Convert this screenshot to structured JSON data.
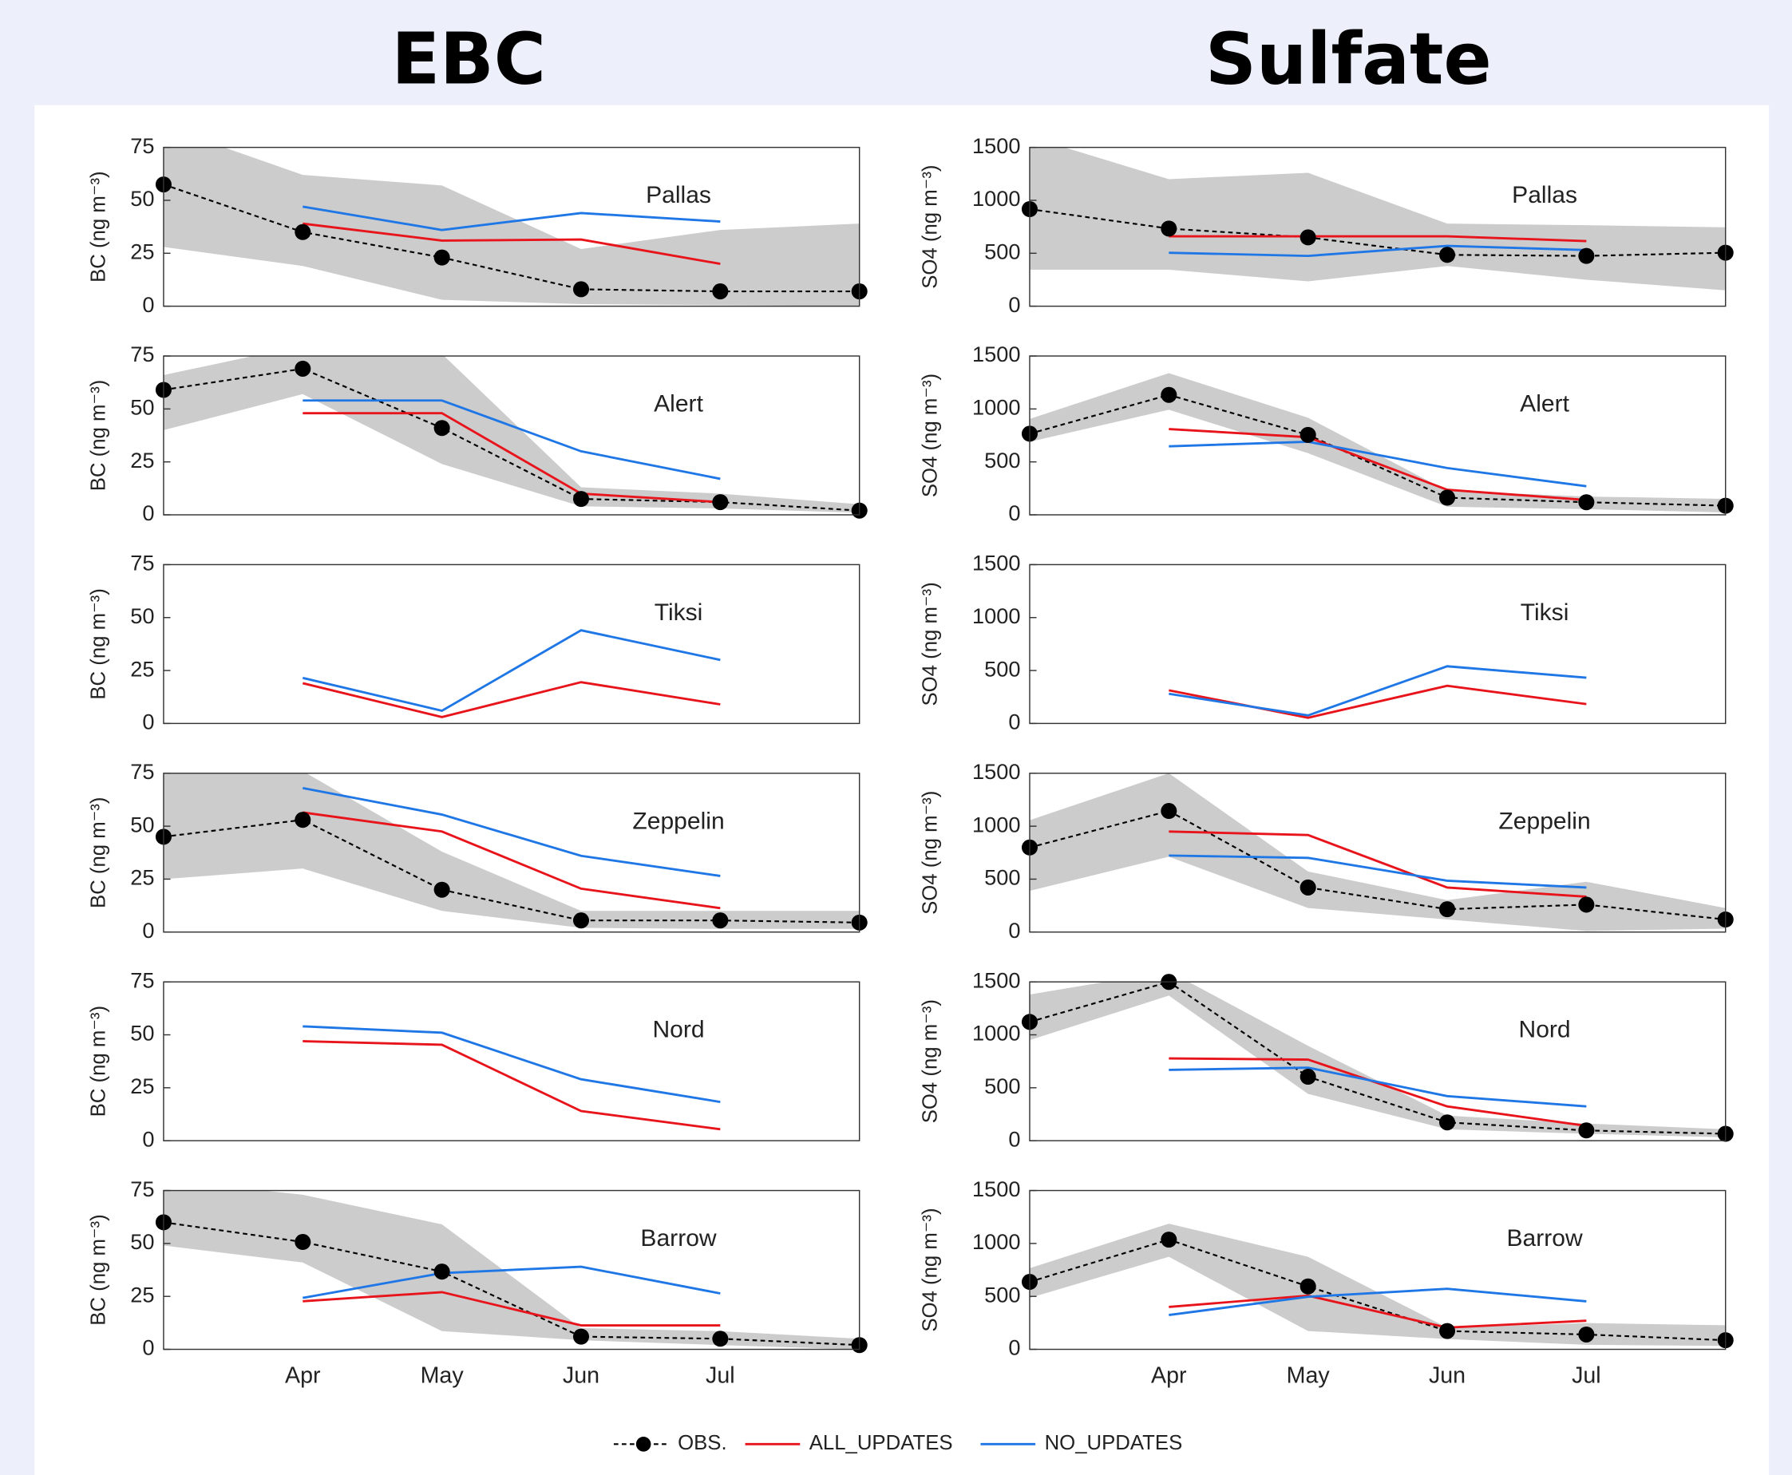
{
  "header": {
    "left_title": "EBC",
    "right_title": "Sulfate"
  },
  "chart_data": [
    {
      "type": "line",
      "label": "Pallas",
      "ylabel": "BC (ng m⁻³)",
      "ylim": [
        0,
        75
      ],
      "yticks": [
        0,
        25,
        50,
        75
      ],
      "band": {
        "color": "#cccccc",
        "low": [
          28,
          19,
          3,
          1,
          0.5,
          0
        ],
        "high": [
          85,
          62,
          57,
          27,
          36,
          39
        ]
      },
      "series": [
        {
          "name": "OBS.",
          "color": "#000000",
          "values": [
            57.5,
            35,
            23,
            8,
            7,
            7
          ]
        },
        {
          "name": "ALL_UPDATES",
          "color": "#e8141b",
          "values": [
            null,
            39,
            31,
            31.5,
            20,
            null
          ]
        },
        {
          "name": "NO_UPDATES",
          "color": "#1f77e6",
          "values": [
            null,
            47,
            36,
            44,
            40,
            null
          ]
        }
      ]
    },
    {
      "type": "line",
      "label": "Alert",
      "ylabel": "BC (ng m⁻³)",
      "ylim": [
        0,
        75
      ],
      "yticks": [
        0,
        25,
        50,
        75
      ],
      "band": {
        "color": "#cccccc",
        "low": [
          40,
          57,
          24,
          4,
          3,
          1
        ],
        "high": [
          66,
          80,
          76,
          13,
          10,
          5
        ]
      },
      "series": [
        {
          "name": "OBS.",
          "color": "#000000",
          "values": [
            59,
            69,
            41,
            7.5,
            6,
            2
          ]
        },
        {
          "name": "ALL_UPDATES",
          "color": "#e8141b",
          "values": [
            null,
            48,
            48,
            10,
            6,
            null
          ]
        },
        {
          "name": "NO_UPDATES",
          "color": "#1f77e6",
          "values": [
            null,
            54,
            54,
            30,
            17,
            null
          ]
        }
      ]
    },
    {
      "type": "line",
      "label": "Tiksi",
      "ylabel": "BC (ng m⁻³)",
      "ylim": [
        0,
        75
      ],
      "yticks": [
        0,
        25,
        50,
        75
      ],
      "series": [
        {
          "name": "OBS.",
          "color": "#000000",
          "values": [
            null,
            null,
            null,
            null,
            null,
            null
          ]
        },
        {
          "name": "ALL_UPDATES",
          "color": "#e8141b",
          "values": [
            null,
            19,
            3,
            19.5,
            9,
            null
          ]
        },
        {
          "name": "NO_UPDATES",
          "color": "#1f77e6",
          "values": [
            null,
            21.5,
            6,
            44,
            30,
            null
          ]
        }
      ]
    },
    {
      "type": "line",
      "label": "Zeppelin",
      "ylabel": "BC (ng m⁻³)",
      "ylim": [
        0,
        75
      ],
      "yticks": [
        0,
        25,
        50,
        75
      ],
      "band": {
        "color": "#cccccc",
        "low": [
          25,
          30,
          10,
          2,
          1.5,
          1.5
        ],
        "high": [
          80,
          76,
          38,
          10,
          10,
          10
        ]
      },
      "series": [
        {
          "name": "OBS.",
          "color": "#000000",
          "values": [
            45,
            53,
            20,
            5.5,
            5.5,
            4.5
          ]
        },
        {
          "name": "ALL_UPDATES",
          "color": "#e8141b",
          "values": [
            null,
            56.5,
            47.5,
            20.5,
            11.3,
            null
          ]
        },
        {
          "name": "NO_UPDATES",
          "color": "#1f77e6",
          "values": [
            null,
            68,
            55.5,
            36,
            26.5,
            null
          ]
        }
      ]
    },
    {
      "type": "line",
      "label": "Nord",
      "ylabel": "BC (ng m⁻³)",
      "ylim": [
        0,
        75
      ],
      "yticks": [
        0,
        25,
        50,
        75
      ],
      "series": [
        {
          "name": "OBS.",
          "color": "#000000",
          "values": [
            null,
            null,
            null,
            null,
            null,
            null
          ]
        },
        {
          "name": "ALL_UPDATES",
          "color": "#e8141b",
          "values": [
            null,
            47,
            45.3,
            14,
            5.4,
            null
          ]
        },
        {
          "name": "NO_UPDATES",
          "color": "#1f77e6",
          "values": [
            null,
            54,
            51,
            29,
            18.3,
            null
          ]
        }
      ]
    },
    {
      "type": "line",
      "label": "Barrow",
      "ylabel": "BC (ng m⁻³)",
      "ylim": [
        0,
        75
      ],
      "yticks": [
        0,
        25,
        50,
        75
      ],
      "categories": [
        null,
        "Apr",
        "May",
        "Jun",
        "Jul",
        null
      ],
      "band": {
        "color": "#cccccc",
        "low": [
          49,
          41,
          8.6,
          4.3,
          2,
          0
        ],
        "high": [
          80,
          73,
          59,
          10,
          8.6,
          5
        ]
      },
      "series": [
        {
          "name": "OBS.",
          "color": "#000000",
          "values": [
            60,
            50.7,
            36.7,
            6,
            5,
            2
          ]
        },
        {
          "name": "ALL_UPDATES",
          "color": "#e8141b",
          "values": [
            null,
            22.7,
            27,
            11.3,
            11.3,
            null
          ]
        },
        {
          "name": "NO_UPDATES",
          "color": "#1f77e6",
          "values": [
            null,
            24.3,
            36,
            39,
            26.4,
            null
          ]
        }
      ]
    },
    {
      "type": "line",
      "label": "Pallas",
      "ylabel": "SO4 (ng m⁻³)",
      "ylim": [
        0,
        1500
      ],
      "yticks": [
        0,
        500,
        1000,
        1500
      ],
      "band": {
        "color": "#cccccc",
        "low": [
          345,
          345,
          235,
          380,
          250,
          150
        ],
        "high": [
          1600,
          1200,
          1260,
          780,
          765,
          745
        ]
      },
      "series": [
        {
          "name": "OBS.",
          "color": "#000000",
          "values": [
            917,
            733,
            650,
            485,
            475,
            505
          ]
        },
        {
          "name": "ALL_UPDATES",
          "color": "#e8141b",
          "values": [
            null,
            660,
            660,
            660,
            615,
            null
          ]
        },
        {
          "name": "NO_UPDATES",
          "color": "#1f77e6",
          "values": [
            null,
            505,
            475,
            570,
            530,
            null
          ]
        }
      ]
    },
    {
      "type": "line",
      "label": "Alert",
      "ylabel": "SO4 (ng m⁻³)",
      "ylim": [
        0,
        1500
      ],
      "yticks": [
        0,
        500,
        1000,
        1500
      ],
      "band": {
        "color": "#cccccc",
        "low": [
          690,
          992,
          582,
          76,
          54,
          22
        ],
        "high": [
          906,
          1338,
          917,
          227,
          173,
          151
        ]
      },
      "series": [
        {
          "name": "OBS.",
          "color": "#000000",
          "values": [
            766,
            1133,
            755,
            162,
            119,
            86
          ]
        },
        {
          "name": "ALL_UPDATES",
          "color": "#e8141b",
          "values": [
            null,
            810,
            733,
            237,
            140,
            null
          ]
        },
        {
          "name": "NO_UPDATES",
          "color": "#1f77e6",
          "values": [
            null,
            647,
            690,
            442,
            270,
            null
          ]
        }
      ]
    },
    {
      "type": "line",
      "label": "Tiksi",
      "ylabel": "SO4 (ng m⁻³)",
      "ylim": [
        0,
        1500
      ],
      "yticks": [
        0,
        500,
        1000,
        1500
      ],
      "series": [
        {
          "name": "OBS.",
          "color": "#000000",
          "values": [
            null,
            null,
            null,
            null,
            null,
            null
          ]
        },
        {
          "name": "ALL_UPDATES",
          "color": "#e8141b",
          "values": [
            null,
            313,
            54,
            356,
            183,
            null
          ]
        },
        {
          "name": "NO_UPDATES",
          "color": "#1f77e6",
          "values": [
            null,
            280,
            76,
            540,
            432,
            null
          ]
        }
      ]
    },
    {
      "type": "line",
      "label": "Zeppelin",
      "ylabel": "SO4 (ng m⁻³)",
      "ylim": [
        0,
        1500
      ],
      "yticks": [
        0,
        500,
        1000,
        1500
      ],
      "band": {
        "color": "#cccccc",
        "low": [
          389,
          712,
          227,
          119,
          11,
          32
        ],
        "high": [
          1057,
          1500,
          572,
          302,
          475,
          227
        ]
      },
      "series": [
        {
          "name": "OBS.",
          "color": "#000000",
          "values": [
            799,
            1144,
            421,
            216,
            259,
            119
          ]
        },
        {
          "name": "ALL_UPDATES",
          "color": "#e8141b",
          "values": [
            null,
            950,
            917,
            421,
            334,
            null
          ]
        },
        {
          "name": "NO_UPDATES",
          "color": "#1f77e6",
          "values": [
            null,
            723,
            701,
            485,
            421,
            null
          ]
        }
      ]
    },
    {
      "type": "line",
      "label": "Nord",
      "ylabel": "SO4 (ng m⁻³)",
      "ylim": [
        0,
        1500
      ],
      "yticks": [
        0,
        500,
        1000,
        1500
      ],
      "band": {
        "color": "#cccccc",
        "low": [
          950,
          1370,
          442,
          108,
          65,
          32
        ],
        "high": [
          1381,
          1600,
          896,
          237,
          162,
          108
        ]
      },
      "series": [
        {
          "name": "OBS.",
          "color": "#000000",
          "values": [
            1122,
            1500,
            604,
            173,
            97,
            65
          ]
        },
        {
          "name": "ALL_UPDATES",
          "color": "#e8141b",
          "values": [
            null,
            777,
            766,
            324,
            140,
            null
          ]
        },
        {
          "name": "NO_UPDATES",
          "color": "#1f77e6",
          "values": [
            null,
            669,
            690,
            421,
            324,
            null
          ]
        }
      ]
    },
    {
      "type": "line",
      "label": "Barrow",
      "ylabel": "SO4 (ng m⁻³)",
      "ylim": [
        0,
        1500
      ],
      "yticks": [
        0,
        500,
        1000,
        1500
      ],
      "categories": [
        null,
        "Apr",
        "May",
        "Jun",
        "Jul",
        null
      ],
      "band": {
        "color": "#cccccc",
        "low": [
          486,
          874,
          173,
          97,
          43,
          32
        ],
        "high": [
          766,
          1187,
          874,
          205,
          248,
          227
        ]
      },
      "series": [
        {
          "name": "OBS.",
          "color": "#000000",
          "values": [
            637,
            1036,
            594,
            173,
            140,
            86
          ]
        },
        {
          "name": "ALL_UPDATES",
          "color": "#e8141b",
          "values": [
            null,
            400,
            507,
            205,
            270,
            null
          ]
        },
        {
          "name": "NO_UPDATES",
          "color": "#1f77e6",
          "values": [
            null,
            324,
            496,
            572,
            453,
            null
          ]
        }
      ]
    }
  ]
}
